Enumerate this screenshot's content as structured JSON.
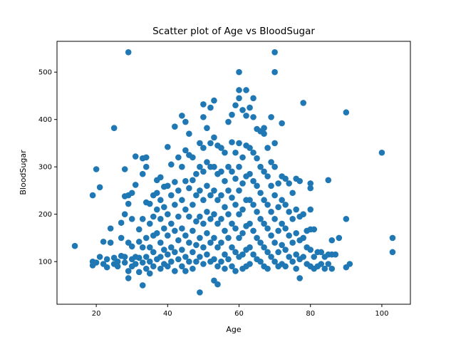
{
  "chart_data": {
    "type": "scatter",
    "title": "Scatter plot of Age vs BloodSugar",
    "xlabel": "Age",
    "ylabel": "BloodSugar",
    "xlim": [
      9,
      108
    ],
    "ylim": [
      10,
      565
    ],
    "xticks": [
      20,
      40,
      60,
      80,
      100
    ],
    "yticks": [
      100,
      200,
      300,
      400,
      500
    ],
    "grid": false,
    "legend": "none",
    "marker_color": "#1f77b4",
    "points": [
      [
        14,
        133
      ],
      [
        19,
        240
      ],
      [
        19,
        92
      ],
      [
        19,
        100
      ],
      [
        20,
        295
      ],
      [
        20,
        98
      ],
      [
        21,
        110
      ],
      [
        21,
        257
      ],
      [
        22,
        142
      ],
      [
        22,
        95
      ],
      [
        23,
        88
      ],
      [
        23,
        105
      ],
      [
        24,
        170
      ],
      [
        24,
        140
      ],
      [
        25,
        382
      ],
      [
        25,
        108
      ],
      [
        25,
        95
      ],
      [
        26,
        100
      ],
      [
        26,
        90
      ],
      [
        27,
        182
      ],
      [
        27,
        112
      ],
      [
        27,
        150
      ],
      [
        28,
        295
      ],
      [
        28,
        238
      ],
      [
        28,
        200
      ],
      [
        28,
        110
      ],
      [
        28,
        98
      ],
      [
        29,
        542
      ],
      [
        29,
        240
      ],
      [
        29,
        222
      ],
      [
        29,
        140
      ],
      [
        29,
        80
      ],
      [
        29,
        65
      ],
      [
        30,
        245
      ],
      [
        30,
        190
      ],
      [
        30,
        132
      ],
      [
        30,
        105
      ],
      [
        30,
        90
      ],
      [
        31,
        322
      ],
      [
        31,
        262
      ],
      [
        31,
        110
      ],
      [
        31,
        95
      ],
      [
        32,
        168
      ],
      [
        32,
        142
      ],
      [
        32,
        108
      ],
      [
        32,
        78
      ],
      [
        33,
        318
      ],
      [
        33,
        285
      ],
      [
        33,
        190
      ],
      [
        33,
        130
      ],
      [
        33,
        98
      ],
      [
        33,
        50
      ],
      [
        34,
        320
      ],
      [
        34,
        300
      ],
      [
        34,
        225
      ],
      [
        34,
        150
      ],
      [
        34,
        110
      ],
      [
        34,
        85
      ],
      [
        35,
        222
      ],
      [
        35,
        180
      ],
      [
        35,
        130
      ],
      [
        35,
        100
      ],
      [
        35,
        75
      ],
      [
        36,
        240
      ],
      [
        36,
        195
      ],
      [
        36,
        155
      ],
      [
        36,
        120
      ],
      [
        36,
        90
      ],
      [
        37,
        272
      ],
      [
        37,
        245
      ],
      [
        37,
        210
      ],
      [
        37,
        160
      ],
      [
        37,
        105
      ],
      [
        38,
        278
      ],
      [
        38,
        230
      ],
      [
        38,
        190
      ],
      [
        38,
        140
      ],
      [
        38,
        110
      ],
      [
        38,
        85
      ],
      [
        39,
        258
      ],
      [
        39,
        215
      ],
      [
        39,
        170
      ],
      [
        39,
        125
      ],
      [
        39,
        95
      ],
      [
        40,
        342
      ],
      [
        40,
        260
      ],
      [
        40,
        200
      ],
      [
        40,
        155
      ],
      [
        40,
        115
      ],
      [
        40,
        90
      ],
      [
        41,
        305
      ],
      [
        41,
        240
      ],
      [
        41,
        180
      ],
      [
        41,
        130
      ],
      [
        41,
        100
      ],
      [
        42,
        385
      ],
      [
        42,
        268
      ],
      [
        42,
        220
      ],
      [
        42,
        165
      ],
      [
        42,
        120
      ],
      [
        42,
        80
      ],
      [
        43,
        320
      ],
      [
        43,
        250
      ],
      [
        43,
        195
      ],
      [
        43,
        145
      ],
      [
        43,
        105
      ],
      [
        44,
        408
      ],
      [
        44,
        300
      ],
      [
        44,
        230
      ],
      [
        44,
        170
      ],
      [
        44,
        125
      ],
      [
        44,
        90
      ],
      [
        45,
        395
      ],
      [
        45,
        335
      ],
      [
        45,
        270
      ],
      [
        45,
        210
      ],
      [
        45,
        155
      ],
      [
        45,
        110
      ],
      [
        45,
        80
      ],
      [
        46,
        370
      ],
      [
        46,
        325
      ],
      [
        46,
        255
      ],
      [
        46,
        195
      ],
      [
        46,
        140
      ],
      [
        46,
        100
      ],
      [
        47,
        320
      ],
      [
        47,
        272
      ],
      [
        47,
        220
      ],
      [
        47,
        165
      ],
      [
        47,
        120
      ],
      [
        47,
        85
      ],
      [
        48,
        285
      ],
      [
        48,
        240
      ],
      [
        48,
        185
      ],
      [
        48,
        135
      ],
      [
        48,
        100
      ],
      [
        49,
        350
      ],
      [
        49,
        300
      ],
      [
        49,
        250
      ],
      [
        49,
        195
      ],
      [
        49,
        150
      ],
      [
        49,
        110
      ],
      [
        49,
        35
      ],
      [
        50,
        432
      ],
      [
        50,
        405
      ],
      [
        50,
        340
      ],
      [
        50,
        290
      ],
      [
        50,
        230
      ],
      [
        50,
        180
      ],
      [
        50,
        130
      ],
      [
        50,
        95
      ],
      [
        51,
        382
      ],
      [
        51,
        310
      ],
      [
        51,
        260
      ],
      [
        51,
        205
      ],
      [
        51,
        160
      ],
      [
        51,
        115
      ],
      [
        52,
        425
      ],
      [
        52,
        350
      ],
      [
        52,
        300
      ],
      [
        52,
        240
      ],
      [
        52,
        190
      ],
      [
        52,
        140
      ],
      [
        52,
        100
      ],
      [
        53,
        440
      ],
      [
        53,
        362
      ],
      [
        53,
        300
      ],
      [
        53,
        250
      ],
      [
        53,
        200
      ],
      [
        53,
        150
      ],
      [
        53,
        105
      ],
      [
        53,
        60
      ],
      [
        54,
        345
      ],
      [
        54,
        285
      ],
      [
        54,
        230
      ],
      [
        54,
        180
      ],
      [
        54,
        130
      ],
      [
        54,
        90
      ],
      [
        54,
        52
      ],
      [
        55,
        340
      ],
      [
        55,
        290
      ],
      [
        55,
        240
      ],
      [
        55,
        190
      ],
      [
        55,
        140
      ],
      [
        55,
        100
      ],
      [
        56,
        330
      ],
      [
        56,
        270
      ],
      [
        56,
        215
      ],
      [
        56,
        165
      ],
      [
        56,
        115
      ],
      [
        56,
        85
      ],
      [
        57,
        395
      ],
      [
        57,
        300
      ],
      [
        57,
        250
      ],
      [
        57,
        200
      ],
      [
        57,
        150
      ],
      [
        57,
        105
      ],
      [
        58,
        410
      ],
      [
        58,
        352
      ],
      [
        58,
        290
      ],
      [
        58,
        235
      ],
      [
        58,
        180
      ],
      [
        58,
        130
      ],
      [
        58,
        90
      ],
      [
        59,
        430
      ],
      [
        59,
        330
      ],
      [
        59,
        275
      ],
      [
        59,
        220
      ],
      [
        59,
        170
      ],
      [
        59,
        120
      ],
      [
        59,
        80
      ],
      [
        60,
        500
      ],
      [
        60,
        462
      ],
      [
        60,
        445
      ],
      [
        60,
        350
      ],
      [
        60,
        300
      ],
      [
        60,
        250
      ],
      [
        60,
        200
      ],
      [
        60,
        150
      ],
      [
        60,
        110
      ],
      [
        61,
        420
      ],
      [
        61,
        320
      ],
      [
        61,
        265
      ],
      [
        61,
        210
      ],
      [
        61,
        160
      ],
      [
        61,
        115
      ],
      [
        61,
        85
      ],
      [
        62,
        462
      ],
      [
        62,
        408
      ],
      [
        62,
        345
      ],
      [
        62,
        280
      ],
      [
        62,
        230
      ],
      [
        62,
        175
      ],
      [
        62,
        125
      ],
      [
        62,
        90
      ],
      [
        63,
        425
      ],
      [
        63,
        340
      ],
      [
        63,
        285
      ],
      [
        63,
        230
      ],
      [
        63,
        180
      ],
      [
        63,
        130
      ],
      [
        63,
        95
      ],
      [
        64,
        445
      ],
      [
        64,
        405
      ],
      [
        64,
        330
      ],
      [
        64,
        270
      ],
      [
        64,
        220
      ],
      [
        64,
        165
      ],
      [
        64,
        115
      ],
      [
        65,
        380
      ],
      [
        65,
        318
      ],
      [
        65,
        260
      ],
      [
        65,
        205
      ],
      [
        65,
        150
      ],
      [
        65,
        105
      ],
      [
        66,
        375
      ],
      [
        66,
        300
      ],
      [
        66,
        245
      ],
      [
        66,
        190
      ],
      [
        66,
        140
      ],
      [
        66,
        100
      ],
      [
        67,
        382
      ],
      [
        67,
        370
      ],
      [
        67,
        290
      ],
      [
        67,
        230
      ],
      [
        67,
        180
      ],
      [
        67,
        130
      ],
      [
        67,
        90
      ],
      [
        68,
        340
      ],
      [
        68,
        280
      ],
      [
        68,
        220
      ],
      [
        68,
        170
      ],
      [
        68,
        120
      ],
      [
        68,
        85
      ],
      [
        69,
        405
      ],
      [
        69,
        310
      ],
      [
        69,
        260
      ],
      [
        69,
        205
      ],
      [
        69,
        155
      ],
      [
        69,
        110
      ],
      [
        70,
        542
      ],
      [
        70,
        500
      ],
      [
        70,
        350
      ],
      [
        70,
        300
      ],
      [
        70,
        240
      ],
      [
        70,
        190
      ],
      [
        70,
        140
      ],
      [
        70,
        100
      ],
      [
        71,
        265
      ],
      [
        71,
        215
      ],
      [
        71,
        165
      ],
      [
        71,
        120
      ],
      [
        71,
        90
      ],
      [
        72,
        392
      ],
      [
        72,
        280
      ],
      [
        72,
        230
      ],
      [
        72,
        180
      ],
      [
        72,
        135
      ],
      [
        72,
        95
      ],
      [
        73,
        275
      ],
      [
        73,
        220
      ],
      [
        73,
        170
      ],
      [
        73,
        125
      ],
      [
        73,
        90
      ],
      [
        74,
        265
      ],
      [
        74,
        205
      ],
      [
        74,
        155
      ],
      [
        74,
        110
      ],
      [
        75,
        245
      ],
      [
        75,
        190
      ],
      [
        75,
        140
      ],
      [
        75,
        100
      ],
      [
        76,
        275
      ],
      [
        76,
        210
      ],
      [
        76,
        160
      ],
      [
        76,
        115
      ],
      [
        76,
        85
      ],
      [
        77,
        270
      ],
      [
        77,
        195
      ],
      [
        77,
        145
      ],
      [
        77,
        105
      ],
      [
        77,
        65
      ],
      [
        78,
        435
      ],
      [
        78,
        200
      ],
      [
        78,
        150
      ],
      [
        78,
        110
      ],
      [
        79,
        165
      ],
      [
        79,
        130
      ],
      [
        79,
        95
      ],
      [
        80,
        265
      ],
      [
        80,
        255
      ],
      [
        80,
        210
      ],
      [
        80,
        168
      ],
      [
        80,
        125
      ],
      [
        80,
        90
      ],
      [
        81,
        168
      ],
      [
        81,
        110
      ],
      [
        81,
        85
      ],
      [
        82,
        120
      ],
      [
        82,
        90
      ],
      [
        83,
        120
      ],
      [
        83,
        95
      ],
      [
        84,
        110
      ],
      [
        84,
        85
      ],
      [
        85,
        272
      ],
      [
        85,
        115
      ],
      [
        85,
        95
      ],
      [
        86,
        145
      ],
      [
        86,
        115
      ],
      [
        86,
        85
      ],
      [
        87,
        115
      ],
      [
        88,
        150
      ],
      [
        90,
        415
      ],
      [
        90,
        190
      ],
      [
        90,
        88
      ],
      [
        91,
        95
      ],
      [
        100,
        330
      ],
      [
        103,
        150
      ],
      [
        103,
        120
      ]
    ]
  }
}
